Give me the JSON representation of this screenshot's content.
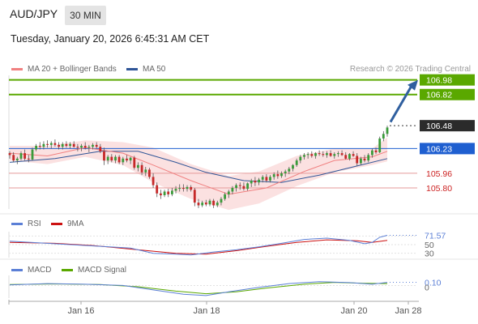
{
  "header": {
    "symbol": "AUD/JPY",
    "timeframe": "30 MIN",
    "datetime": "Tuesday, January 20, 2026 6:45:31 AM CET",
    "credit": "Research © 2026 Trading Central"
  },
  "colors": {
    "ma20": "#f08080",
    "bands": "#f7c9c9",
    "ma50": "#2f5597",
    "green": "#5aa800",
    "blue": "#1f5fd0",
    "red": "#cc2222",
    "up": "#3a9b3a",
    "down": "#c62828",
    "arrow": "#2f5f9f"
  },
  "chart_data": [
    {
      "type": "candlestick",
      "legend": [
        "MA 20 + Bollinger Bands",
        "MA 50"
      ],
      "x_ticks": [
        "Jan 16",
        "Jan 18",
        "Jan 20",
        "Jan 28"
      ],
      "ylim": [
        105.57,
        107.03
      ],
      "levels": [
        {
          "value": 106.98,
          "label": "106.98",
          "color": "green",
          "style": "resistance"
        },
        {
          "value": 106.82,
          "label": "106.82",
          "color": "green",
          "style": "resistance"
        },
        {
          "value": 106.48,
          "label": "106.48",
          "color": "dark",
          "style": "current"
        },
        {
          "value": 106.23,
          "label": "106.23",
          "color": "blue",
          "style": "pivot"
        },
        {
          "value": 105.96,
          "label": "105.96",
          "color": "red",
          "style": "support"
        },
        {
          "value": 105.8,
          "label": "105.80",
          "color": "red",
          "style": "support"
        }
      ],
      "candles": [
        [
          106.18,
          106.2,
          106.12,
          106.16
        ],
        [
          106.16,
          106.19,
          106.08,
          106.1
        ],
        [
          106.1,
          106.14,
          106.06,
          106.12
        ],
        [
          106.12,
          106.2,
          106.1,
          106.18
        ],
        [
          106.18,
          106.22,
          106.1,
          106.12
        ],
        [
          106.12,
          106.16,
          106.08,
          106.11
        ],
        [
          106.11,
          106.24,
          106.1,
          106.22
        ],
        [
          106.22,
          106.28,
          106.2,
          106.26
        ],
        [
          106.26,
          106.3,
          106.22,
          106.25
        ],
        [
          106.25,
          106.31,
          106.22,
          106.28
        ],
        [
          106.28,
          106.32,
          106.24,
          106.27
        ],
        [
          106.27,
          106.31,
          106.23,
          106.29
        ],
        [
          106.29,
          106.33,
          106.25,
          106.27
        ],
        [
          106.27,
          106.3,
          106.22,
          106.25
        ],
        [
          106.25,
          106.3,
          106.22,
          106.28
        ],
        [
          106.28,
          106.31,
          106.24,
          106.26
        ],
        [
          106.26,
          106.3,
          106.23,
          106.28
        ],
        [
          106.28,
          106.31,
          106.24,
          106.25
        ],
        [
          106.25,
          106.28,
          106.2,
          106.24
        ],
        [
          106.24,
          106.28,
          106.2,
          106.26
        ],
        [
          106.26,
          106.3,
          106.22,
          106.24
        ],
        [
          106.24,
          106.27,
          106.19,
          106.25
        ],
        [
          106.25,
          106.29,
          106.22,
          106.27
        ],
        [
          106.27,
          106.3,
          106.23,
          106.25
        ],
        [
          106.25,
          106.28,
          106.18,
          106.2
        ],
        [
          106.2,
          106.24,
          106.05,
          106.1
        ],
        [
          106.1,
          106.16,
          106.06,
          106.14
        ],
        [
          106.14,
          106.17,
          106.08,
          106.1
        ],
        [
          106.1,
          106.16,
          106.07,
          106.14
        ],
        [
          106.14,
          106.16,
          106.06,
          106.08
        ],
        [
          106.08,
          106.14,
          106.05,
          106.12
        ],
        [
          106.12,
          106.16,
          106.08,
          106.1
        ],
        [
          106.1,
          106.14,
          106.06,
          106.13
        ],
        [
          106.13,
          106.15,
          106.0,
          106.02
        ],
        [
          106.02,
          106.08,
          105.98,
          106.05
        ],
        [
          106.05,
          106.08,
          105.94,
          105.97
        ],
        [
          105.97,
          106.03,
          105.93,
          106.0
        ],
        [
          106.0,
          106.02,
          105.9,
          105.92
        ],
        [
          105.92,
          105.96,
          105.8,
          105.83
        ],
        [
          105.83,
          105.86,
          105.7,
          105.74
        ],
        [
          105.74,
          105.78,
          105.68,
          105.72
        ],
        [
          105.72,
          105.78,
          105.7,
          105.76
        ],
        [
          105.76,
          105.79,
          105.7,
          105.73
        ],
        [
          105.73,
          105.8,
          105.71,
          105.77
        ],
        [
          105.77,
          105.82,
          105.74,
          105.79
        ],
        [
          105.79,
          105.84,
          105.76,
          105.8
        ],
        [
          105.8,
          105.84,
          105.76,
          105.79
        ],
        [
          105.79,
          105.83,
          105.76,
          105.81
        ],
        [
          105.81,
          105.83,
          105.76,
          105.78
        ],
        [
          105.78,
          105.8,
          105.6,
          105.64
        ],
        [
          105.64,
          105.68,
          105.58,
          105.61
        ],
        [
          105.61,
          105.66,
          105.59,
          105.64
        ],
        [
          105.64,
          105.67,
          105.6,
          105.62
        ],
        [
          105.62,
          105.68,
          105.6,
          105.66
        ],
        [
          105.66,
          105.68,
          105.58,
          105.61
        ],
        [
          105.61,
          105.66,
          105.59,
          105.64
        ],
        [
          105.64,
          105.7,
          105.61,
          105.68
        ],
        [
          105.68,
          105.75,
          105.66,
          105.73
        ],
        [
          105.73,
          105.78,
          105.69,
          105.76
        ],
        [
          105.76,
          105.82,
          105.73,
          105.8
        ],
        [
          105.8,
          105.85,
          105.76,
          105.83
        ],
        [
          105.83,
          105.86,
          105.78,
          105.82
        ],
        [
          105.82,
          105.86,
          105.77,
          105.79
        ],
        [
          105.79,
          105.86,
          105.77,
          105.85
        ],
        [
          105.85,
          105.9,
          105.81,
          105.88
        ],
        [
          105.88,
          105.92,
          105.82,
          105.86
        ],
        [
          105.86,
          105.91,
          105.83,
          105.89
        ],
        [
          105.89,
          105.94,
          105.86,
          105.92
        ],
        [
          105.92,
          105.95,
          105.86,
          105.88
        ],
        [
          105.88,
          105.94,
          105.86,
          105.92
        ],
        [
          105.92,
          105.97,
          105.89,
          105.95
        ],
        [
          105.95,
          105.99,
          105.9,
          105.93
        ],
        [
          105.93,
          105.98,
          105.91,
          105.96
        ],
        [
          105.96,
          106.0,
          105.92,
          105.98
        ],
        [
          105.98,
          106.03,
          105.95,
          106.01
        ],
        [
          106.01,
          106.06,
          105.98,
          106.05
        ],
        [
          106.05,
          106.12,
          106.03,
          106.1
        ],
        [
          106.1,
          106.16,
          106.07,
          106.14
        ],
        [
          106.14,
          106.18,
          106.11,
          106.16
        ],
        [
          106.16,
          106.19,
          106.12,
          106.17
        ],
        [
          106.17,
          106.2,
          106.13,
          106.15
        ],
        [
          106.15,
          106.19,
          106.12,
          106.18
        ],
        [
          106.18,
          106.21,
          106.15,
          106.17
        ],
        [
          106.17,
          106.2,
          106.14,
          106.16
        ],
        [
          106.16,
          106.2,
          106.13,
          106.18
        ],
        [
          106.18,
          106.21,
          106.14,
          106.15
        ],
        [
          106.15,
          106.19,
          106.12,
          106.17
        ],
        [
          106.17,
          106.2,
          106.14,
          106.18
        ],
        [
          106.18,
          106.21,
          106.15,
          106.16
        ],
        [
          106.16,
          106.19,
          106.11,
          106.12
        ],
        [
          106.12,
          106.18,
          106.1,
          106.17
        ],
        [
          106.17,
          106.2,
          106.14,
          106.15
        ],
        [
          106.15,
          106.18,
          106.04,
          106.07
        ],
        [
          106.07,
          106.14,
          106.05,
          106.12
        ],
        [
          106.12,
          106.16,
          106.08,
          106.1
        ],
        [
          106.1,
          106.18,
          106.08,
          106.16
        ],
        [
          106.16,
          106.23,
          106.13,
          106.21
        ],
        [
          106.21,
          106.24,
          106.17,
          106.19
        ],
        [
          106.19,
          106.36,
          106.18,
          106.34
        ],
        [
          106.34,
          106.42,
          106.31,
          106.39
        ],
        [
          106.39,
          106.48,
          106.36,
          106.46
        ]
      ],
      "ma20": [
        [
          0,
          106.18
        ],
        [
          10,
          106.15
        ],
        [
          20,
          106.24
        ],
        [
          30,
          106.18
        ],
        [
          38,
          106.05
        ],
        [
          48,
          105.88
        ],
        [
          58,
          105.73
        ],
        [
          68,
          105.8
        ],
        [
          78,
          105.98
        ],
        [
          86,
          106.1
        ],
        [
          96,
          106.14
        ],
        [
          100,
          106.2
        ]
      ],
      "bb_upper": [
        [
          0,
          106.26
        ],
        [
          10,
          106.26
        ],
        [
          20,
          106.32
        ],
        [
          30,
          106.3
        ],
        [
          38,
          106.24
        ],
        [
          48,
          106.06
        ],
        [
          58,
          105.93
        ],
        [
          66,
          105.98
        ],
        [
          76,
          106.15
        ],
        [
          86,
          106.23
        ],
        [
          96,
          106.23
        ],
        [
          100,
          106.35
        ]
      ],
      "bb_lower": [
        [
          0,
          106.1
        ],
        [
          10,
          106.06
        ],
        [
          20,
          106.14
        ],
        [
          30,
          106.05
        ],
        [
          38,
          105.86
        ],
        [
          48,
          105.68
        ],
        [
          58,
          105.56
        ],
        [
          66,
          105.63
        ],
        [
          76,
          105.82
        ],
        [
          86,
          105.97
        ],
        [
          96,
          106.05
        ],
        [
          100,
          106.09
        ]
      ],
      "ma50": [
        [
          0,
          106.08
        ],
        [
          12,
          106.12
        ],
        [
          24,
          106.2
        ],
        [
          34,
          106.2
        ],
        [
          44,
          106.08
        ],
        [
          52,
          105.97
        ],
        [
          62,
          105.88
        ],
        [
          72,
          105.86
        ],
        [
          82,
          105.94
        ],
        [
          92,
          106.04
        ],
        [
          100,
          106.12
        ]
      ]
    },
    {
      "type": "line",
      "panel": "RSI",
      "legend": [
        "RSI",
        "9MA"
      ],
      "value_label": "71.57",
      "level_labels": [
        "50",
        "30"
      ],
      "ylim": [
        20,
        80
      ],
      "rsi": [
        [
          0,
          58
        ],
        [
          8,
          54
        ],
        [
          16,
          50
        ],
        [
          24,
          46
        ],
        [
          32,
          42
        ],
        [
          38,
          30
        ],
        [
          44,
          28
        ],
        [
          48,
          26
        ],
        [
          54,
          33
        ],
        [
          60,
          38
        ],
        [
          66,
          45
        ],
        [
          72,
          53
        ],
        [
          78,
          62
        ],
        [
          84,
          65
        ],
        [
          90,
          60
        ],
        [
          94,
          52
        ],
        [
          96,
          55
        ],
        [
          98,
          67
        ],
        [
          100,
          71.57
        ]
      ],
      "ma9": [
        [
          0,
          55
        ],
        [
          12,
          53
        ],
        [
          22,
          48
        ],
        [
          34,
          38
        ],
        [
          44,
          30
        ],
        [
          52,
          28
        ],
        [
          60,
          36
        ],
        [
          68,
          46
        ],
        [
          76,
          55
        ],
        [
          84,
          61
        ],
        [
          92,
          59
        ],
        [
          96,
          55
        ],
        [
          100,
          60
        ]
      ]
    },
    {
      "type": "line",
      "panel": "MACD",
      "legend": [
        "MACD",
        "MACD Signal"
      ],
      "value_label": "0.10",
      "zero_label": "0",
      "ylim": [
        -0.4,
        0.32
      ],
      "macd": [
        [
          0,
          0.02
        ],
        [
          10,
          0.06
        ],
        [
          20,
          0.04
        ],
        [
          30,
          0.0
        ],
        [
          38,
          -0.14
        ],
        [
          46,
          -0.28
        ],
        [
          52,
          -0.32
        ],
        [
          58,
          -0.2
        ],
        [
          66,
          -0.06
        ],
        [
          74,
          0.06
        ],
        [
          82,
          0.12
        ],
        [
          90,
          0.09
        ],
        [
          96,
          0.04
        ],
        [
          100,
          0.1
        ]
      ],
      "signal": [
        [
          0,
          0.03
        ],
        [
          12,
          0.05
        ],
        [
          24,
          0.03
        ],
        [
          34,
          -0.04
        ],
        [
          44,
          -0.18
        ],
        [
          52,
          -0.26
        ],
        [
          60,
          -0.2
        ],
        [
          68,
          -0.08
        ],
        [
          78,
          0.04
        ],
        [
          86,
          0.1
        ],
        [
          94,
          0.07
        ],
        [
          100,
          0.06
        ]
      ]
    }
  ]
}
